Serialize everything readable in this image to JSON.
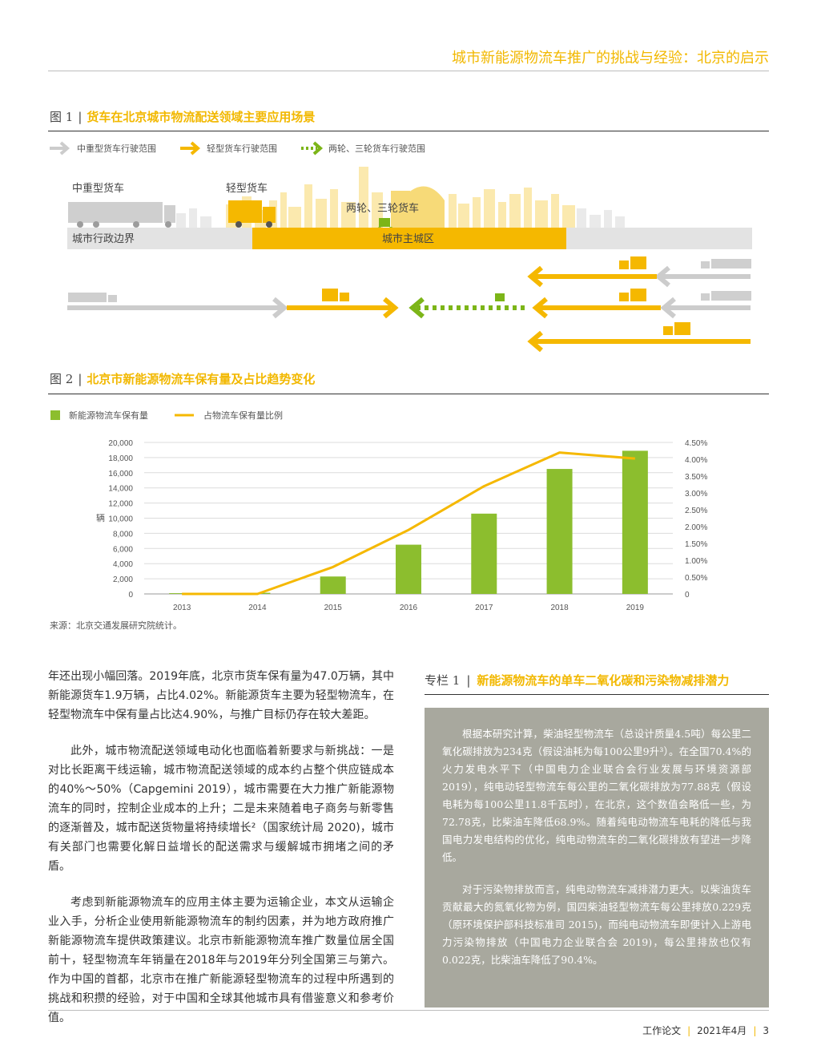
{
  "header": {
    "title": "城市新能源物流车推广的挑战与经验：北京的启示"
  },
  "figure1": {
    "number": "图 1",
    "title": "货车在北京城市物流配送领域主要应用场景",
    "legend": [
      "中重型货车行驶范围",
      "轻型货车行驶范围",
      "两轮、三轮货车行驶范围"
    ],
    "labels": {
      "heavy": "中重型货车",
      "light": "轻型货车",
      "small": "两轮、三轮货车",
      "boundary": "城市行政边界",
      "core": "城市主城区"
    },
    "colors": {
      "heavy": "#cccccc",
      "light": "#f5b800",
      "small": "#7cb518"
    }
  },
  "figure2": {
    "number": "图 2",
    "title": "北京市新能源物流车保有量及占比趋势变化"
  },
  "chart_data": {
    "type": "bar",
    "title": "",
    "categories": [
      "2013",
      "2014",
      "2015",
      "2016",
      "2017",
      "2018",
      "2019"
    ],
    "series": [
      {
        "name": "新能源物流车保有量",
        "kind": "bar",
        "axis": "left",
        "color": "#8cbe2e",
        "values": [
          100,
          150,
          2300,
          6500,
          10600,
          16500,
          18900
        ]
      },
      {
        "name": "占物流车保有量比例",
        "kind": "line",
        "axis": "right",
        "color": "#f5b800",
        "values": [
          0.0,
          0.0,
          0.8,
          1.9,
          3.2,
          4.2,
          4.02
        ]
      }
    ],
    "ylabel": "辆",
    "ylim": [
      0,
      20000
    ],
    "y2lim": [
      0,
      4.5
    ],
    "yticks": [
      "0",
      "2,000",
      "4,000",
      "6,000",
      "8,000",
      "10,000",
      "12,000",
      "14,000",
      "16,000",
      "18,000",
      "20,000"
    ],
    "y2ticks": [
      "0",
      "0.50%",
      "1.00%",
      "1.50%",
      "2.00%",
      "2.50%",
      "3.00%",
      "3.50%",
      "4.00%",
      "4.50%"
    ],
    "grid": true,
    "legend_position": "top-left"
  },
  "source": "来源：北京交通发展研究院统计。",
  "body": {
    "paragraphs": [
      "年还出现小幅回落。2019年底，北京市货车保有量为47.0万辆，其中新能源货车1.9万辆，占比4.02%。新能源货车主要为轻型物流车，在轻型物流车中保有量占比达4.90%，与推广目标仍存在较大差距。",
      "此外，城市物流配送领域电动化也面临着新要求与新挑战：一是对比长距离干线运输，城市物流配送领域的成本约占整个供应链成本的40%～50%（Capgemini 2019），城市需要在大力推广新能源物流车的同时，控制企业成本的上升；二是未来随着电子商务与新零售的逐渐普及，城市配送货物量将持续增长²（国家统计局 2020)，城市有关部门也需要化解日益增长的配送需求与缓解城市拥堵之间的矛盾。",
      "考虑到新能源物流车的应用主体主要为运输企业，本文从运输企业入手，分析企业使用新能源物流车的制约因素，并为地方政府推广新能源物流车提供政策建议。北京市新能源物流车推广数量位居全国前十，轻型物流车年销量在2018年与2019年分列全国第三与第六。作为中国的首都，北京市在推广新能源轻型物流车的过程中所遇到的挑战和积攒的经验，对于中国和全球其他城市具有借鉴意义和参考价值。"
    ]
  },
  "box": {
    "number": "专栏 1",
    "title": "新能源物流车的单车二氧化碳和污染物减排潜力",
    "paragraphs": [
      "根据本研究计算，柴油轻型物流车（总设计质量4.5吨）每公里二氧化碳排放为234克（假设油耗为每100公里9升³）。在全国70.4%的火力发电水平下（中国电力企业联合会行业发展与环境资源部 2019），纯电动轻型物流车每公里的二氧化碳排放为77.88克（假设电耗为每100公里11.8千瓦时），在北京，这个数值会略低一些，为72.78克，比柴油车降低68.9%。随着纯电动物流车电耗的降低与我国电力发电结构的优化，纯电动物流车的二氧化碳排放有望进一步降低。",
      "对于污染物排放而言，纯电动物流车减排潜力更大。以柴油货车贡献最大的氮氧化物为例，国四柴油轻型物流车每公里排放0.229克（原环境保护部科技标准司 2015)，而纯电动物流车即便计入上游电力污染物排放（中国电力企业联合会 2019)，每公里排放也仅有0.022克，比柴油车降低了90.4%。"
    ]
  },
  "footer": {
    "label": "工作论文",
    "date": "2021年4月",
    "page": "3"
  }
}
